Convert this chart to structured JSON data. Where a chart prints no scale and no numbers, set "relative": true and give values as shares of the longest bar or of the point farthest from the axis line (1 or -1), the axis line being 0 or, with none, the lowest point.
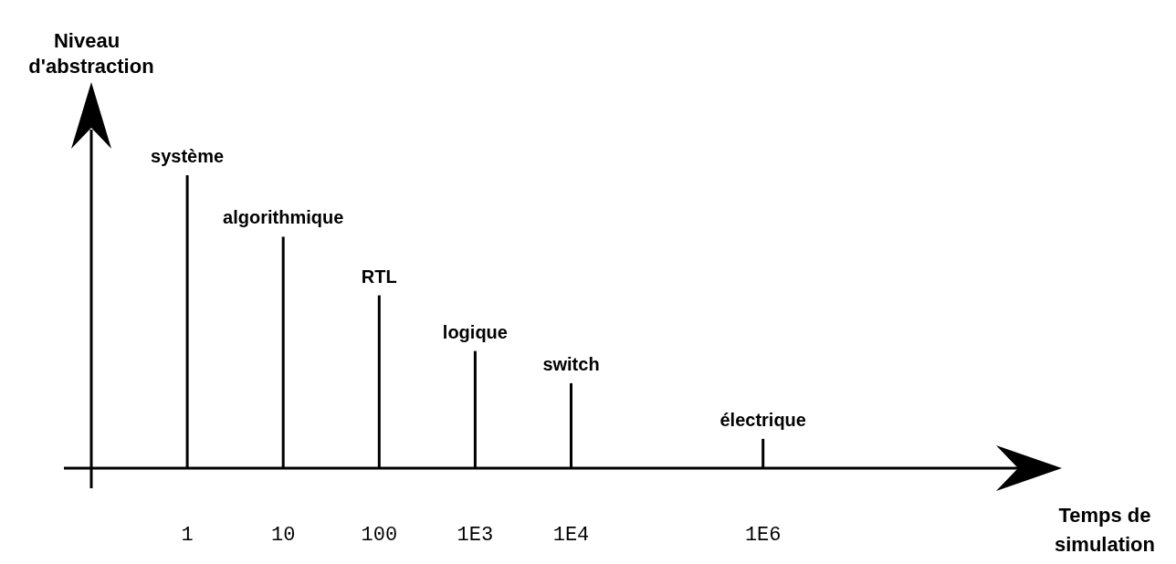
{
  "chart_data": {
    "type": "bar",
    "relative": true,
    "xlabel": "Temps de simulation",
    "ylabel": "Niveau d'abstraction",
    "log": "x",
    "xlim": [
      0.1,
      1000000000
    ],
    "xticks": [
      1,
      10,
      100,
      {
        "value": 1000,
        "label": "1E3"
      },
      {
        "value": 10000,
        "label": "1E4"
      },
      {
        "value": 1000000,
        "label": "1E6"
      }
    ],
    "x": [
      1,
      10,
      100,
      1000,
      10000,
      1000000
    ],
    "series": [
      {
        "color": "#000000",
        "values": [
          1,
          0.79,
          0.59,
          0.4,
          0.29,
          0.1
        ]
      }
    ],
    "annotations": [
      {
        "text": "système",
        "x": 1,
        "y": 1
      },
      {
        "text": "algorithmique",
        "x": 10,
        "y": 0.79
      },
      {
        "text": "RTL",
        "x": 100,
        "y": 0.59
      },
      {
        "text": "logique",
        "x": 1000,
        "y": 0.4
      },
      {
        "text": "switch",
        "x": 10000,
        "y": 0.29
      },
      {
        "text": "électrique",
        "x": 1000000,
        "y": 0.1
      }
    ],
    "grid": false
  }
}
